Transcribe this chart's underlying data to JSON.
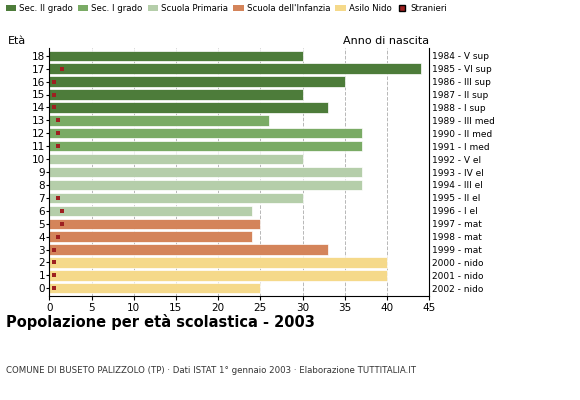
{
  "ages": [
    18,
    17,
    16,
    15,
    14,
    13,
    12,
    11,
    10,
    9,
    8,
    7,
    6,
    5,
    4,
    3,
    2,
    1,
    0
  ],
  "values": [
    30,
    44,
    35,
    30,
    33,
    26,
    37,
    37,
    30,
    37,
    37,
    30,
    24,
    25,
    24,
    33,
    40,
    40,
    25
  ],
  "stranieri_x": [
    0,
    1.5,
    0.5,
    0.5,
    0.5,
    1.0,
    1.0,
    1.0,
    0,
    0,
    0,
    1.0,
    1.5,
    1.5,
    1.0,
    0.5,
    0.5,
    0.5,
    0.5
  ],
  "bar_colors": [
    "#4d7c3a",
    "#4d7c3a",
    "#4d7c3a",
    "#4d7c3a",
    "#4d7c3a",
    "#7aab65",
    "#7aab65",
    "#7aab65",
    "#b5ceaa",
    "#b5ceaa",
    "#b5ceaa",
    "#b5ceaa",
    "#b5ceaa",
    "#d4845a",
    "#d4845a",
    "#d4845a",
    "#f5d98a",
    "#f5d98a",
    "#f5d98a"
  ],
  "right_labels": [
    "1984 - V sup",
    "1985 - VI sup",
    "1986 - III sup",
    "1987 - II sup",
    "1988 - I sup",
    "1989 - III med",
    "1990 - II med",
    "1991 - I med",
    "1992 - V el",
    "1993 - IV el",
    "1994 - III el",
    "1995 - II el",
    "1996 - I el",
    "1997 - mat",
    "1998 - mat",
    "1999 - mat",
    "2000 - nido",
    "2001 - nido",
    "2002 - nido"
  ],
  "legend_labels": [
    "Sec. II grado",
    "Sec. I grado",
    "Scuola Primaria",
    "Scuola dell'Infanzia",
    "Asilo Nido",
    "Stranieri"
  ],
  "legend_colors": [
    "#4d7c3a",
    "#7aab65",
    "#b5ceaa",
    "#d4845a",
    "#f5d98a",
    "#9e2020"
  ],
  "title": "Popolazione per età scolastica - 2003",
  "subtitle": "COMUNE DI BUSETO PALIZZOLO (TP) · Dati ISTAT 1° gennaio 2003 · Elaborazione TUTTITALIA.IT",
  "ylabel_left": "Età",
  "ylabel_right": "Anno di nascita",
  "xlim": [
    0,
    45
  ],
  "xticks": [
    0,
    5,
    10,
    15,
    20,
    25,
    30,
    35,
    40,
    45
  ],
  "stranieri_color": "#9e2020",
  "bar_height": 0.8,
  "bg_color": "#ffffff"
}
